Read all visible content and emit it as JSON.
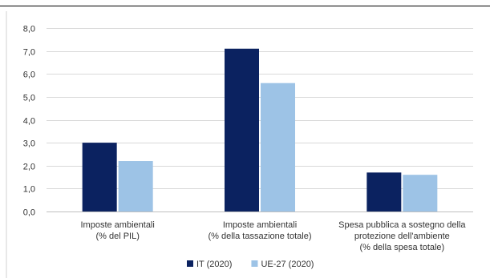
{
  "chart_data": {
    "type": "bar",
    "categories": [
      [
        "Imposte ambientali",
        "(% del PIL)"
      ],
      [
        "Imposte ambientali",
        "(% della tassazione totale)"
      ],
      [
        "Spesa pubblica a sostegno della",
        "protezione dell'ambiente",
        "(% della spesa totale)"
      ]
    ],
    "series": [
      {
        "name": "IT (2020)",
        "color": "#0b2260",
        "values": [
          3.0,
          7.1,
          1.7
        ]
      },
      {
        "name": "UE-27 (2020)",
        "color": "#9dc3e6",
        "values": [
          2.2,
          5.6,
          1.6
        ]
      }
    ],
    "yticks": [
      "0,0",
      "1,0",
      "2,0",
      "3,0",
      "4,0",
      "5,0",
      "6,0",
      "7,0",
      "8,0"
    ],
    "ylim": [
      0,
      8
    ],
    "grid": true,
    "legend": "bottom-center",
    "grid_color": "#d9d9d9"
  }
}
